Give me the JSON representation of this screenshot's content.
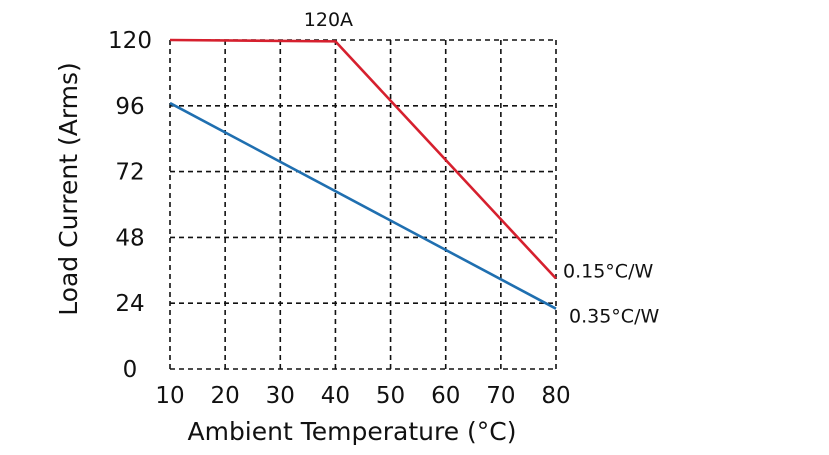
{
  "chart_data": {
    "type": "line",
    "xlabel": "Ambient Temperature (°C)",
    "ylabel": "Load Current (Arms)",
    "xlim": [
      10,
      80
    ],
    "ylim": [
      0,
      120
    ],
    "x_ticks": [
      10,
      20,
      30,
      40,
      50,
      60,
      70,
      80
    ],
    "y_ticks": [
      0,
      24,
      48,
      72,
      96,
      120
    ],
    "grid": true,
    "series": [
      {
        "name": "0.15°C/W",
        "color": "#d6202e",
        "x": [
          10,
          40,
          80
        ],
        "y": [
          120,
          119.5,
          33
        ]
      },
      {
        "name": "0.35°C/W",
        "color": "#1f6fb0",
        "x": [
          10,
          80
        ],
        "y": [
          97,
          22
        ]
      }
    ],
    "annotations": [
      {
        "text": "120A",
        "x": 40,
        "y": 120
      }
    ]
  }
}
